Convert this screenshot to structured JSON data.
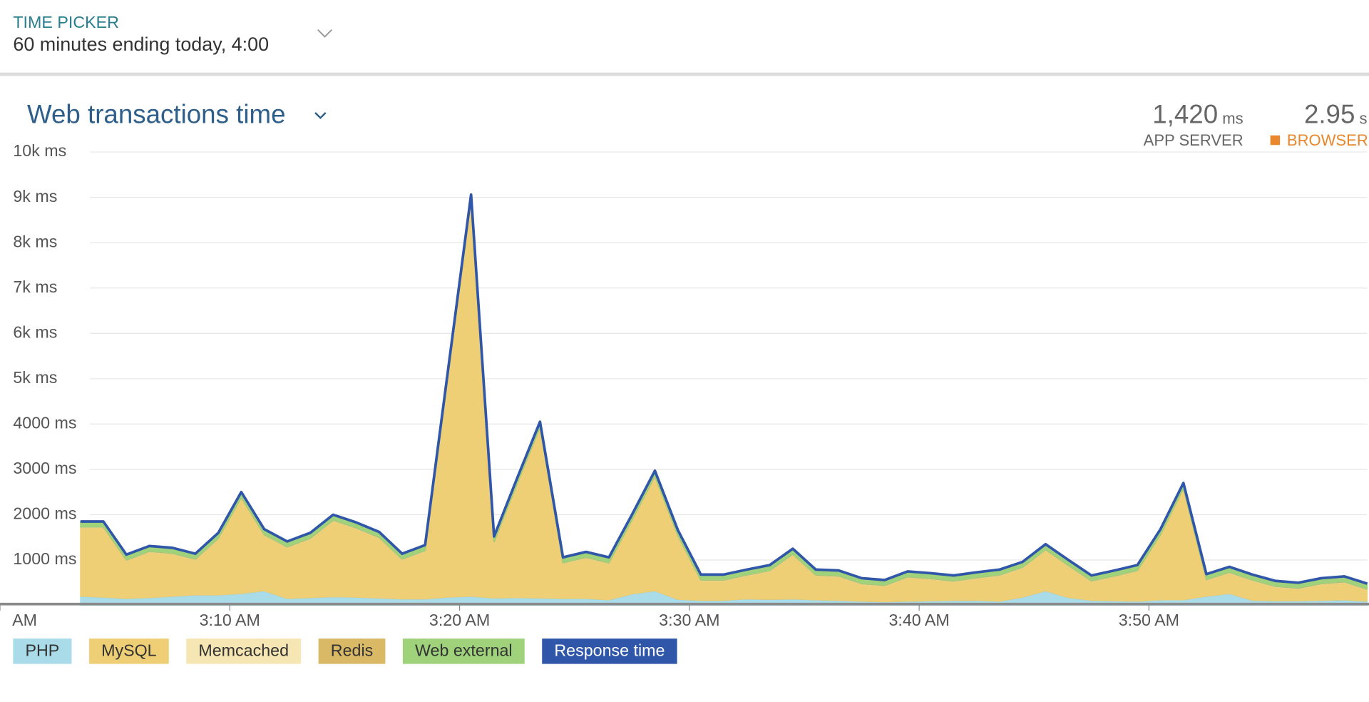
{
  "header": {
    "label": "TIME PICKER",
    "range": "60 minutes ending today, 4:00"
  },
  "summary": [
    {
      "value": "1,420",
      "unit": "ms",
      "label": "APP SERVER"
    },
    {
      "value": "2.95",
      "unit": "s",
      "label": "BROWSER"
    }
  ],
  "chart_data": {
    "type": "area",
    "title": "Web transactions time",
    "x": [
      3.5,
      4.5,
      5.5,
      6.5,
      7.5,
      8.5,
      9.5,
      10.5,
      11.5,
      12.5,
      13.5,
      14.5,
      15.5,
      16.5,
      17.5,
      18.5,
      19.5,
      20.5,
      21.5,
      22.5,
      23.5,
      24.5,
      25.5,
      26.5,
      27.5,
      28.5,
      29.5,
      30.5,
      31.5,
      32.5,
      33.5,
      34.5,
      35.5,
      36.5,
      37.5,
      38.5,
      39.5,
      40.5,
      41.5,
      42.5,
      43.5,
      44.5,
      45.5,
      46.5,
      47.5,
      48.5,
      49.5,
      50.5,
      51.5,
      52.5,
      53.5,
      54.5,
      55.5,
      56.5,
      57.5,
      58.5,
      59.5
    ],
    "xlim": [
      0,
      59.5
    ],
    "xticks": [
      {
        "value": 0,
        "label": "AM"
      },
      {
        "value": 10,
        "label": "3:10 AM"
      },
      {
        "value": 20,
        "label": "3:20 AM"
      },
      {
        "value": 30,
        "label": "3:30 AM"
      },
      {
        "value": 40,
        "label": "3:40 AM"
      },
      {
        "value": 50,
        "label": "3:50 AM"
      }
    ],
    "ylim": [
      0,
      10000
    ],
    "yticks": [
      {
        "value": 1000,
        "label": "1000 ms"
      },
      {
        "value": 2000,
        "label": "2000 ms"
      },
      {
        "value": 3000,
        "label": "3000 ms"
      },
      {
        "value": 4000,
        "label": "4000 ms"
      },
      {
        "value": 5000,
        "label": "5k ms"
      },
      {
        "value": 6000,
        "label": "6k ms"
      },
      {
        "value": 7000,
        "label": "7k ms"
      },
      {
        "value": 8000,
        "label": "8k ms"
      },
      {
        "value": 9000,
        "label": "9k ms"
      },
      {
        "value": 10000,
        "label": "10k ms"
      }
    ],
    "grid": true,
    "series": [
      {
        "name": "PHP",
        "color": "#a9dbe8",
        "style": "area",
        "values": [
          200,
          180,
          150,
          170,
          200,
          230,
          230,
          260,
          320,
          150,
          170,
          190,
          180,
          160,
          140,
          140,
          180,
          200,
          160,
          170,
          160,
          150,
          150,
          120,
          250,
          320,
          130,
          110,
          110,
          140,
          130,
          140,
          120,
          110,
          90,
          80,
          90,
          100,
          110,
          110,
          90,
          180,
          320,
          170,
          110,
          100,
          90,
          120,
          120,
          200,
          260,
          110,
          100,
          100,
          110,
          120,
          90
        ]
      },
      {
        "name": "MySQL",
        "color": "#efcf75",
        "style": "area",
        "values": [
          1515,
          1535,
          835,
          1005,
          935,
          775,
          1235,
          2105,
          1225,
          1125,
          1295,
          1675,
          1515,
          1325,
          865,
          1055,
          4885,
          8725,
          1225,
          2495,
          3755,
          775,
          895,
          805,
          1615,
          2515,
          1395,
          435,
          435,
          515,
          625,
          975,
          535,
          525,
          375,
          345,
          525,
          475,
          415,
          485,
          565,
          645,
          895,
          695,
          415,
          535,
          665,
          1425,
          2445,
          355,
          455,
          435,
          305,
          265,
          355,
          385,
          255
        ]
      },
      {
        "name": "Memcached",
        "color": "#f5e6b3",
        "style": "area",
        "values": [
          10,
          10,
          10,
          10,
          10,
          10,
          10,
          10,
          10,
          10,
          10,
          10,
          10,
          10,
          10,
          10,
          10,
          10,
          10,
          10,
          10,
          10,
          10,
          10,
          10,
          10,
          10,
          10,
          10,
          10,
          10,
          10,
          10,
          10,
          10,
          10,
          10,
          10,
          10,
          10,
          10,
          10,
          10,
          10,
          10,
          10,
          10,
          10,
          10,
          10,
          10,
          10,
          10,
          10,
          10,
          10,
          10
        ]
      },
      {
        "name": "Redis",
        "color": "#d9b866",
        "style": "area",
        "values": [
          5,
          5,
          5,
          5,
          5,
          5,
          5,
          5,
          5,
          5,
          5,
          5,
          5,
          5,
          5,
          5,
          5,
          5,
          5,
          5,
          5,
          5,
          5,
          5,
          5,
          5,
          5,
          5,
          5,
          5,
          5,
          5,
          5,
          5,
          5,
          5,
          5,
          5,
          5,
          5,
          5,
          5,
          5,
          5,
          5,
          5,
          5,
          5,
          5,
          5,
          5,
          5,
          5,
          5,
          5,
          5,
          5
        ]
      },
      {
        "name": "Web external",
        "color": "#9fd27b",
        "style": "area",
        "values": [
          120,
          120,
          120,
          120,
          120,
          120,
          120,
          120,
          120,
          120,
          120,
          120,
          120,
          120,
          120,
          120,
          120,
          120,
          120,
          120,
          120,
          120,
          120,
          120,
          120,
          120,
          120,
          120,
          120,
          120,
          120,
          120,
          120,
          120,
          120,
          120,
          120,
          120,
          120,
          120,
          120,
          120,
          120,
          120,
          120,
          120,
          120,
          120,
          120,
          120,
          120,
          120,
          120,
          120,
          120,
          120,
          120
        ]
      },
      {
        "name": "Response time",
        "color": "#2f56a8",
        "style": "line",
        "values": [
          1850,
          1850,
          1120,
          1310,
          1270,
          1140,
          1600,
          2500,
          1680,
          1410,
          1600,
          2000,
          1830,
          1620,
          1140,
          1330,
          5200,
          9060,
          1520,
          2800,
          4050,
          1060,
          1180,
          1060,
          2000,
          2970,
          1660,
          680,
          680,
          790,
          890,
          1250,
          790,
          770,
          600,
          560,
          750,
          710,
          660,
          730,
          790,
          960,
          1350,
          1000,
          660,
          770,
          890,
          1680,
          2700,
          690,
          850,
          680,
          540,
          500,
          600,
          640,
          480
        ]
      }
    ]
  }
}
